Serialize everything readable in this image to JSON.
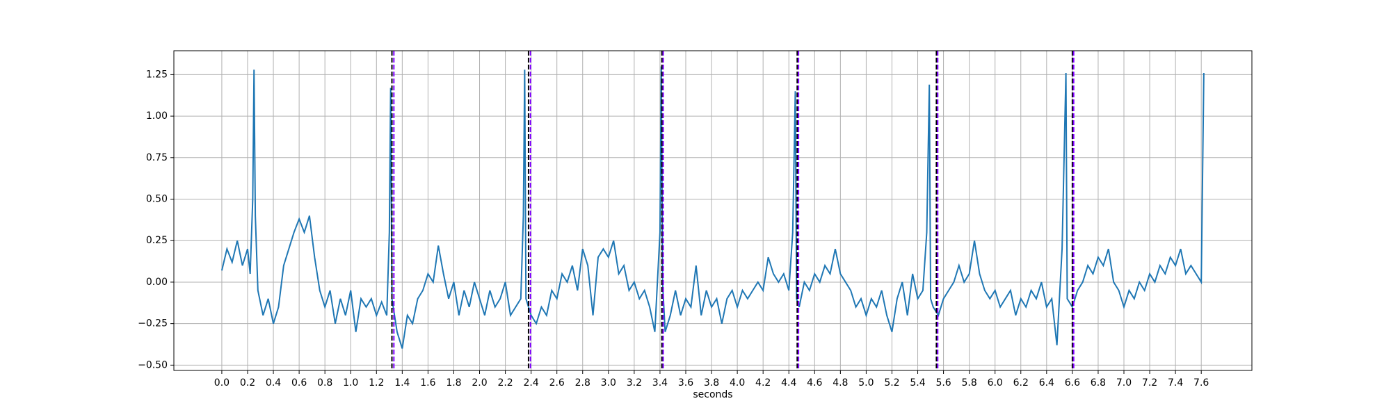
{
  "chart_data": {
    "type": "line",
    "xlabel": "seconds",
    "xlim": [
      -0.372,
      7.993
    ],
    "ylim": [
      -0.532,
      1.394
    ],
    "grid": true,
    "xticks": [
      {
        "value": 0.0,
        "label": "0.0"
      },
      {
        "value": 0.2,
        "label": "0.2"
      },
      {
        "value": 0.4,
        "label": "0.4"
      },
      {
        "value": 0.6,
        "label": "0.6"
      },
      {
        "value": 0.8,
        "label": "0.8"
      },
      {
        "value": 1.0,
        "label": "1.0"
      },
      {
        "value": 1.2,
        "label": "1.2"
      },
      {
        "value": 1.4,
        "label": "1.4"
      },
      {
        "value": 1.6,
        "label": "1.6"
      },
      {
        "value": 1.8,
        "label": "1.8"
      },
      {
        "value": 2.0,
        "label": "2.0"
      },
      {
        "value": 2.2,
        "label": "2.2"
      },
      {
        "value": 2.4,
        "label": "2.4"
      },
      {
        "value": 2.6,
        "label": "2.6"
      },
      {
        "value": 2.8,
        "label": "2.8"
      },
      {
        "value": 3.0,
        "label": "3.0"
      },
      {
        "value": 3.2,
        "label": "3.2"
      },
      {
        "value": 3.4,
        "label": "3.4"
      },
      {
        "value": 3.6,
        "label": "3.6"
      },
      {
        "value": 3.8,
        "label": "3.8"
      },
      {
        "value": 4.0,
        "label": "4.0"
      },
      {
        "value": 4.2,
        "label": "4.2"
      },
      {
        "value": 4.4,
        "label": "4.4"
      },
      {
        "value": 4.6,
        "label": "4.6"
      },
      {
        "value": 4.8,
        "label": "4.8"
      },
      {
        "value": 5.0,
        "label": "5.0"
      },
      {
        "value": 5.2,
        "label": "5.2"
      },
      {
        "value": 5.4,
        "label": "5.4"
      },
      {
        "value": 5.6,
        "label": "5.6"
      },
      {
        "value": 5.8,
        "label": "5.8"
      },
      {
        "value": 6.0,
        "label": "6.0"
      },
      {
        "value": 6.2,
        "label": "6.2"
      },
      {
        "value": 6.4,
        "label": "6.4"
      },
      {
        "value": 6.6,
        "label": "6.6"
      },
      {
        "value": 6.8,
        "label": "6.8"
      },
      {
        "value": 7.0,
        "label": "7.0"
      },
      {
        "value": 7.2,
        "label": "7.2"
      },
      {
        "value": 7.4,
        "label": "7.4"
      },
      {
        "value": 7.6,
        "label": "7.6"
      }
    ],
    "yticks": [
      {
        "value": -0.5,
        "label": "−0.50"
      },
      {
        "value": -0.25,
        "label": "−0.25"
      },
      {
        "value": 0,
        "label": "0.00"
      },
      {
        "value": 0.25,
        "label": "0.25"
      },
      {
        "value": 0.5,
        "label": "0.50"
      },
      {
        "value": 0.75,
        "label": "0.75"
      },
      {
        "value": 1,
        "label": "1.00"
      },
      1.25
    ],
    "series": [
      {
        "color": "#1f77b4",
        "x": [
          0.0,
          0.04,
          0.08,
          0.12,
          0.16,
          0.2,
          0.22,
          0.24,
          0.25,
          0.26,
          0.28,
          0.32,
          0.36,
          0.4,
          0.44,
          0.48,
          0.52,
          0.56,
          0.6,
          0.64,
          0.68,
          0.72,
          0.76,
          0.8,
          0.84,
          0.88,
          0.92,
          0.96,
          1.0,
          1.04,
          1.08,
          1.12,
          1.16,
          1.2,
          1.24,
          1.28,
          1.3,
          1.31,
          1.32,
          1.36,
          1.4,
          1.44,
          1.48,
          1.52,
          1.56,
          1.6,
          1.64,
          1.68,
          1.72,
          1.76,
          1.8,
          1.84,
          1.88,
          1.92,
          1.96,
          2.0,
          2.04,
          2.08,
          2.12,
          2.16,
          2.2,
          2.24,
          2.28,
          2.32,
          2.34,
          2.35,
          2.36,
          2.4,
          2.44,
          2.48,
          2.52,
          2.56,
          2.6,
          2.64,
          2.68,
          2.72,
          2.76,
          2.8,
          2.84,
          2.88,
          2.92,
          2.96,
          3.0,
          3.04,
          3.08,
          3.12,
          3.16,
          3.2,
          3.24,
          3.28,
          3.32,
          3.36,
          3.4,
          3.41,
          3.42,
          3.44,
          3.48,
          3.52,
          3.56,
          3.6,
          3.64,
          3.68,
          3.72,
          3.76,
          3.8,
          3.84,
          3.88,
          3.92,
          3.96,
          4.0,
          4.04,
          4.08,
          4.12,
          4.16,
          4.2,
          4.24,
          4.28,
          4.32,
          4.36,
          4.4,
          4.43,
          4.45,
          4.46,
          4.48,
          4.52,
          4.56,
          4.6,
          4.64,
          4.68,
          4.72,
          4.76,
          4.8,
          4.84,
          4.88,
          4.92,
          4.96,
          5.0,
          5.04,
          5.08,
          5.12,
          5.16,
          5.2,
          5.24,
          5.28,
          5.32,
          5.36,
          5.4,
          5.44,
          5.47,
          5.49,
          5.5,
          5.52,
          5.56,
          5.6,
          5.64,
          5.68,
          5.72,
          5.76,
          5.8,
          5.84,
          5.88,
          5.92,
          5.96,
          6.0,
          6.04,
          6.08,
          6.12,
          6.16,
          6.2,
          6.24,
          6.28,
          6.32,
          6.36,
          6.4,
          6.44,
          6.48,
          6.52,
          6.55,
          6.56,
          6.6,
          6.64,
          6.68,
          6.72,
          6.76,
          6.8,
          6.84,
          6.88,
          6.92,
          6.96,
          7.0,
          7.04,
          7.08,
          7.12,
          7.16,
          7.2,
          7.24,
          7.28,
          7.32,
          7.36,
          7.4,
          7.44,
          7.48,
          7.52,
          7.56,
          7.6,
          7.62
        ],
        "values": [
          0.07,
          0.2,
          0.12,
          0.25,
          0.1,
          0.2,
          0.05,
          0.5,
          1.28,
          0.4,
          -0.05,
          -0.2,
          -0.1,
          -0.25,
          -0.15,
          0.1,
          0.2,
          0.3,
          0.38,
          0.3,
          0.4,
          0.15,
          -0.05,
          -0.15,
          -0.05,
          -0.25,
          -0.1,
          -0.2,
          -0.05,
          -0.3,
          -0.1,
          -0.15,
          -0.1,
          -0.2,
          -0.12,
          -0.2,
          0.3,
          1.17,
          -0.1,
          -0.3,
          -0.4,
          -0.2,
          -0.25,
          -0.1,
          -0.05,
          0.05,
          0.0,
          0.22,
          0.05,
          -0.1,
          0.0,
          -0.2,
          -0.05,
          -0.15,
          0.0,
          -0.1,
          -0.2,
          -0.05,
          -0.15,
          -0.1,
          0.0,
          -0.2,
          -0.15,
          -0.1,
          0.4,
          1.28,
          -0.1,
          -0.2,
          -0.25,
          -0.15,
          -0.2,
          -0.05,
          -0.1,
          0.05,
          0.0,
          0.1,
          -0.05,
          0.2,
          0.1,
          -0.2,
          0.15,
          0.2,
          0.15,
          0.25,
          0.05,
          0.1,
          -0.05,
          0.0,
          -0.1,
          -0.05,
          -0.15,
          -0.3,
          0.3,
          1.3,
          0.0,
          -0.3,
          -0.2,
          -0.05,
          -0.2,
          -0.1,
          -0.15,
          0.1,
          -0.2,
          -0.05,
          -0.15,
          -0.1,
          -0.25,
          -0.1,
          -0.05,
          -0.15,
          -0.05,
          -0.1,
          -0.05,
          0.0,
          -0.05,
          0.15,
          0.05,
          0.0,
          0.05,
          -0.05,
          0.3,
          1.15,
          -0.1,
          -0.15,
          0.0,
          -0.05,
          0.05,
          0.0,
          0.1,
          0.05,
          0.2,
          0.05,
          0.0,
          -0.05,
          -0.15,
          -0.1,
          -0.2,
          -0.1,
          -0.15,
          -0.05,
          -0.2,
          -0.3,
          -0.1,
          0.0,
          -0.2,
          0.05,
          -0.1,
          -0.05,
          0.3,
          1.19,
          -0.1,
          -0.15,
          -0.2,
          -0.1,
          -0.05,
          0.0,
          0.1,
          0.0,
          0.05,
          0.25,
          0.05,
          -0.05,
          -0.1,
          -0.05,
          -0.15,
          -0.1,
          -0.05,
          -0.2,
          -0.1,
          -0.15,
          -0.05,
          -0.1,
          0.0,
          -0.15,
          -0.1,
          -0.38,
          0.2,
          1.26,
          -0.1,
          -0.15,
          -0.05,
          0.0,
          0.1,
          0.05,
          0.15,
          0.1,
          0.2,
          0.0,
          -0.05,
          -0.15,
          -0.05,
          -0.1,
          0.0,
          -0.05,
          0.05,
          0.0,
          0.1,
          0.05,
          0.15,
          0.1,
          0.2,
          0.05,
          0.1,
          0.05,
          0.0,
          1.26
        ]
      }
    ],
    "vlines": [
      {
        "color": "#000000",
        "values": [
          1.32,
          2.38,
          3.415,
          4.465,
          5.545,
          6.6
        ]
      },
      {
        "color": "#7f00ff",
        "values": [
          1.335,
          2.395,
          3.425,
          4.475,
          5.555,
          6.61
        ]
      }
    ]
  }
}
